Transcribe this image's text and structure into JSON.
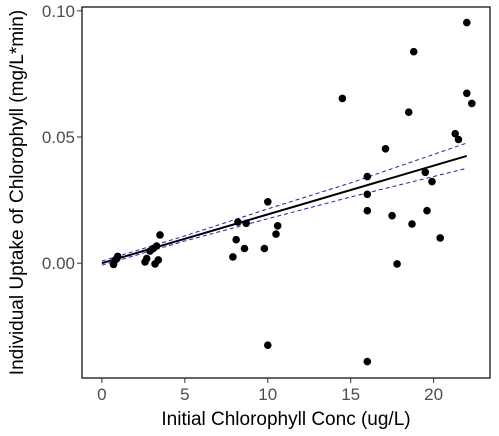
{
  "chart_data": {
    "type": "scatter",
    "title": "",
    "xlabel": "Initial Chlorophyll Conc (ug/L)",
    "ylabel": "Individual Uptake of Chlorophyll (mg/L*min)",
    "xlim": [
      -1.2,
      23.4
    ],
    "ylim": [
      -0.0455,
      0.1015
    ],
    "x_ticks": [
      0,
      5,
      10,
      15,
      20
    ],
    "x_tick_labels": [
      "0",
      "5",
      "10",
      "15",
      "20"
    ],
    "y_ticks": [
      0.0,
      0.05,
      0.1
    ],
    "y_tick_labels": [
      "0.00",
      "0.05",
      "0.10"
    ],
    "grid": false,
    "legend": "none",
    "colors": {
      "points": "#000000",
      "fit": "#000000",
      "ci": "#1f1fbf",
      "frame": "#000000",
      "tick_text": "#4d4d4d"
    },
    "points": [
      {
        "x": 0.7,
        "y": -0.0005
      },
      {
        "x": 0.8,
        "y": 0.0012
      },
      {
        "x": 0.9,
        "y": 0.0018
      },
      {
        "x": 0.95,
        "y": 0.0027
      },
      {
        "x": 2.6,
        "y": 0.0005
      },
      {
        "x": 2.7,
        "y": 0.0018
      },
      {
        "x": 2.9,
        "y": 0.0048
      },
      {
        "x": 3.1,
        "y": 0.0058
      },
      {
        "x": 3.2,
        "y": -0.0003
      },
      {
        "x": 3.3,
        "y": 0.0068
      },
      {
        "x": 3.4,
        "y": 0.0013
      },
      {
        "x": 3.5,
        "y": 0.0112
      },
      {
        "x": 7.9,
        "y": 0.0025
      },
      {
        "x": 8.1,
        "y": 0.0093
      },
      {
        "x": 8.2,
        "y": 0.0163
      },
      {
        "x": 8.6,
        "y": 0.0058
      },
      {
        "x": 8.7,
        "y": 0.0158
      },
      {
        "x": 9.8,
        "y": 0.0058
      },
      {
        "x": 10.0,
        "y": 0.0243
      },
      {
        "x": 10.0,
        "y": -0.0325
      },
      {
        "x": 10.5,
        "y": 0.0115
      },
      {
        "x": 10.6,
        "y": 0.0148
      },
      {
        "x": 14.5,
        "y": 0.0653
      },
      {
        "x": 16.0,
        "y": 0.0343
      },
      {
        "x": 16.0,
        "y": 0.0273
      },
      {
        "x": 16.0,
        "y": 0.0208
      },
      {
        "x": 16.0,
        "y": -0.039
      },
      {
        "x": 17.1,
        "y": 0.0453
      },
      {
        "x": 17.5,
        "y": 0.0188
      },
      {
        "x": 17.8,
        "y": -0.0003
      },
      {
        "x": 18.5,
        "y": 0.0598
      },
      {
        "x": 18.7,
        "y": 0.0155
      },
      {
        "x": 18.8,
        "y": 0.0838
      },
      {
        "x": 19.5,
        "y": 0.036
      },
      {
        "x": 19.6,
        "y": 0.0208
      },
      {
        "x": 19.9,
        "y": 0.0323
      },
      {
        "x": 20.4,
        "y": 0.01
      },
      {
        "x": 21.3,
        "y": 0.0513
      },
      {
        "x": 21.5,
        "y": 0.049
      },
      {
        "x": 22.0,
        "y": 0.0673
      },
      {
        "x": 22.0,
        "y": 0.0953
      },
      {
        "x": 22.3,
        "y": 0.0633
      }
    ],
    "fit_line": {
      "x": [
        0.0,
        22.0
      ],
      "y": [
        0.0,
        0.0425
      ]
    },
    "ci_upper": {
      "x": [
        0.0,
        5.0,
        10.0,
        15.0,
        22.0
      ],
      "y": [
        0.0008,
        0.0108,
        0.0215,
        0.0318,
        0.0476
      ]
    },
    "ci_lower": {
      "x": [
        0.0,
        5.0,
        10.0,
        15.0,
        22.0
      ],
      "y": [
        -0.0008,
        0.0088,
        0.0176,
        0.0262,
        0.0376
      ]
    }
  }
}
